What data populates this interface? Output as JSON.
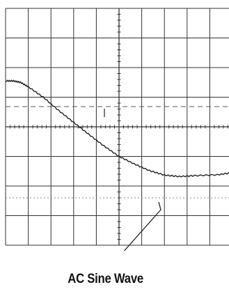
{
  "caption": "AC Sine Wave",
  "colors": {
    "grid": "#333333",
    "trace": "#222222",
    "background": "#ffffff"
  },
  "grid": {
    "columns": 10,
    "rows": 8
  },
  "trace": {
    "points": [
      [
        0.0,
        1.55
      ],
      [
        0.17,
        1.55
      ],
      [
        0.33,
        1.5
      ],
      [
        0.5,
        1.35
      ],
      [
        0.83,
        1.0
      ],
      [
        1.17,
        0.55
      ],
      [
        1.5,
        0.15
      ],
      [
        1.83,
        -0.25
      ],
      [
        2.17,
        -0.65
      ],
      [
        2.5,
        -1.0
      ],
      [
        2.83,
        -1.25
      ],
      [
        3.17,
        -1.48
      ],
      [
        3.5,
        -1.63
      ],
      [
        3.83,
        -1.68
      ],
      [
        4.17,
        -1.65
      ],
      [
        4.67,
        -1.62
      ],
      [
        5.0,
        -1.55
      ]
    ]
  }
}
